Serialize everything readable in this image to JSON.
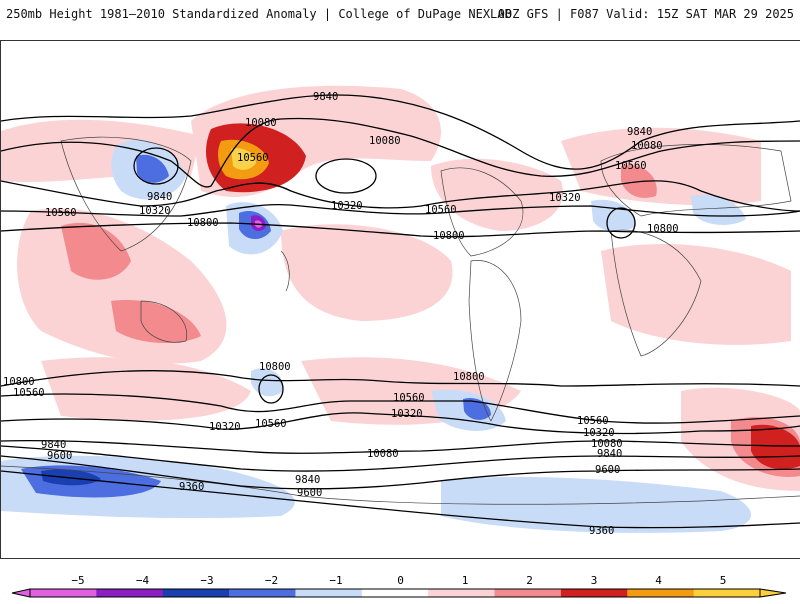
{
  "header": {
    "title": "250mb Height 1981–2010 Standardized Anomaly | College of DuPage NEXLAB",
    "run_info": "00Z GFS | F087 Valid: 15Z SAT MAR 29 2025"
  },
  "contour_labels": [
    {
      "text": "9840"
    },
    {
      "text": "10080"
    },
    {
      "text": "10560"
    },
    {
      "text": "9840"
    },
    {
      "text": "10320"
    },
    {
      "text": "10080"
    },
    {
      "text": "10560"
    },
    {
      "text": "10800"
    },
    {
      "text": "10320"
    },
    {
      "text": "10560"
    },
    {
      "text": "10800"
    },
    {
      "text": "9840"
    },
    {
      "text": "10080"
    },
    {
      "text": "10560"
    },
    {
      "text": "10320"
    },
    {
      "text": "10800"
    },
    {
      "text": "10800"
    },
    {
      "text": "10800"
    },
    {
      "text": "10560"
    },
    {
      "text": "10560"
    },
    {
      "text": "10800"
    },
    {
      "text": "10560"
    },
    {
      "text": "10320"
    },
    {
      "text": "10320"
    },
    {
      "text": "10080"
    },
    {
      "text": "10560"
    },
    {
      "text": "10320"
    },
    {
      "text": "10080"
    },
    {
      "text": "9840"
    },
    {
      "text": "9600"
    },
    {
      "text": "9840"
    },
    {
      "text": "9600"
    },
    {
      "text": "9360"
    },
    {
      "text": "9840"
    },
    {
      "text": "9600"
    },
    {
      "text": "9360"
    }
  ],
  "colorbar": {
    "ticks": [
      "−5",
      "−4",
      "−3",
      "−2",
      "−1",
      "0",
      "1",
      "2",
      "3",
      "4",
      "5"
    ],
    "colors": [
      "#e060e0",
      "#8a1fc4",
      "#1a3fb0",
      "#4c6ee0",
      "#c8dcf8",
      "#ffffff",
      "#fbd3d5",
      "#f28a8e",
      "#d02020",
      "#f39c12",
      "#fbd03c"
    ]
  }
}
